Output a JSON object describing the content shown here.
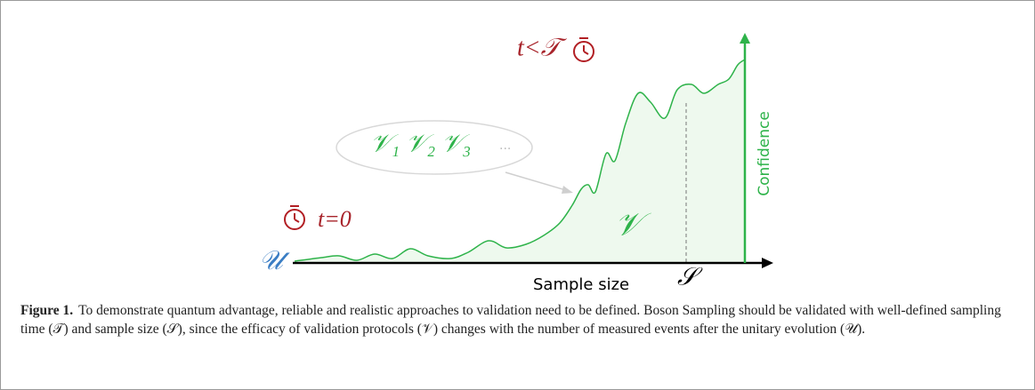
{
  "figure": {
    "labels": {
      "time_end": "t<𝒯",
      "protocols": "𝒱₁  𝒱₂  𝒱₃",
      "ellipsis": "...",
      "time_start": "t=0",
      "unitary": "𝒰",
      "validation": "𝒱",
      "x_axis": "Sample size",
      "sample": "𝒮",
      "y_axis": "Confidence"
    }
  },
  "caption": {
    "label": "Figure 1.",
    "text": "To demonstrate quantum advantage, reliable and realistic approaches to validation need to be defined. Boson Sampling should be validated with well-defined sampling time (𝒯) and sample size (𝒮), since the efficacy of validation protocols (𝒱) changes with the number of measured events after the unitary evolution (𝒰)."
  }
}
